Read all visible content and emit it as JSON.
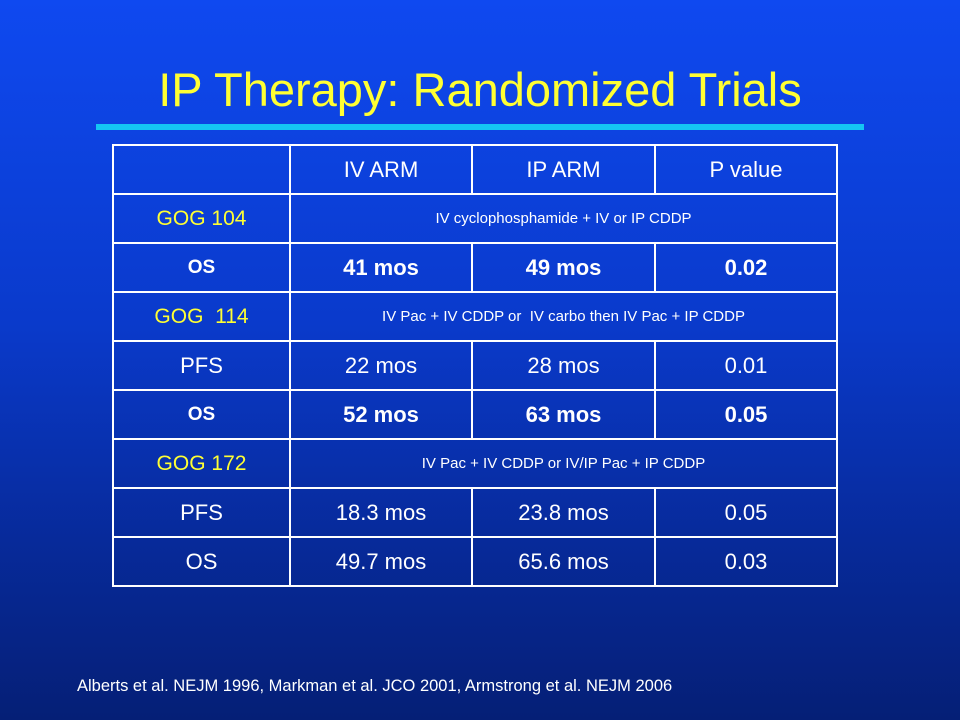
{
  "title": "IP Therapy: Randomized Trials",
  "table": {
    "header": [
      "",
      "IV ARM",
      "IP ARM",
      "P value"
    ],
    "gog104": {
      "label": "GOG 104",
      "regimen": "IV cyclophosphamide + IV or IP CDDP",
      "rows": [
        {
          "label": "OS",
          "iv": "41 mos",
          "ip": "49 mos",
          "p": "0.02"
        }
      ]
    },
    "gog114": {
      "label": "GOG  114",
      "regimen": "IV Pac + IV CDDP or  IV carbo then IV Pac + IP CDDP",
      "rows": [
        {
          "label": "PFS",
          "iv": "22 mos",
          "ip": "28 mos",
          "p": "0.01"
        },
        {
          "label": "OS",
          "iv": "52 mos",
          "ip": "63 mos",
          "p": "0.05"
        }
      ]
    },
    "gog172": {
      "label": "GOG 172",
      "regimen": "IV Pac + IV CDDP or IV/IP Pac + IP CDDP",
      "rows": [
        {
          "label": "PFS",
          "iv": "18.3 mos",
          "ip": "23.8 mos",
          "p": "0.05"
        },
        {
          "label": "OS",
          "iv": "49.7 mos",
          "ip": "65.6 mos",
          "p": "0.03"
        }
      ]
    }
  },
  "citation": "Alberts et al. NEJM 1996, Markman et al. JCO 2001, Armstrong et al.  NEJM 2006",
  "colors": {
    "background": "#0a3acb",
    "title": "#ffff33",
    "rule": "#14c6f3",
    "text": "#ffffff"
  }
}
